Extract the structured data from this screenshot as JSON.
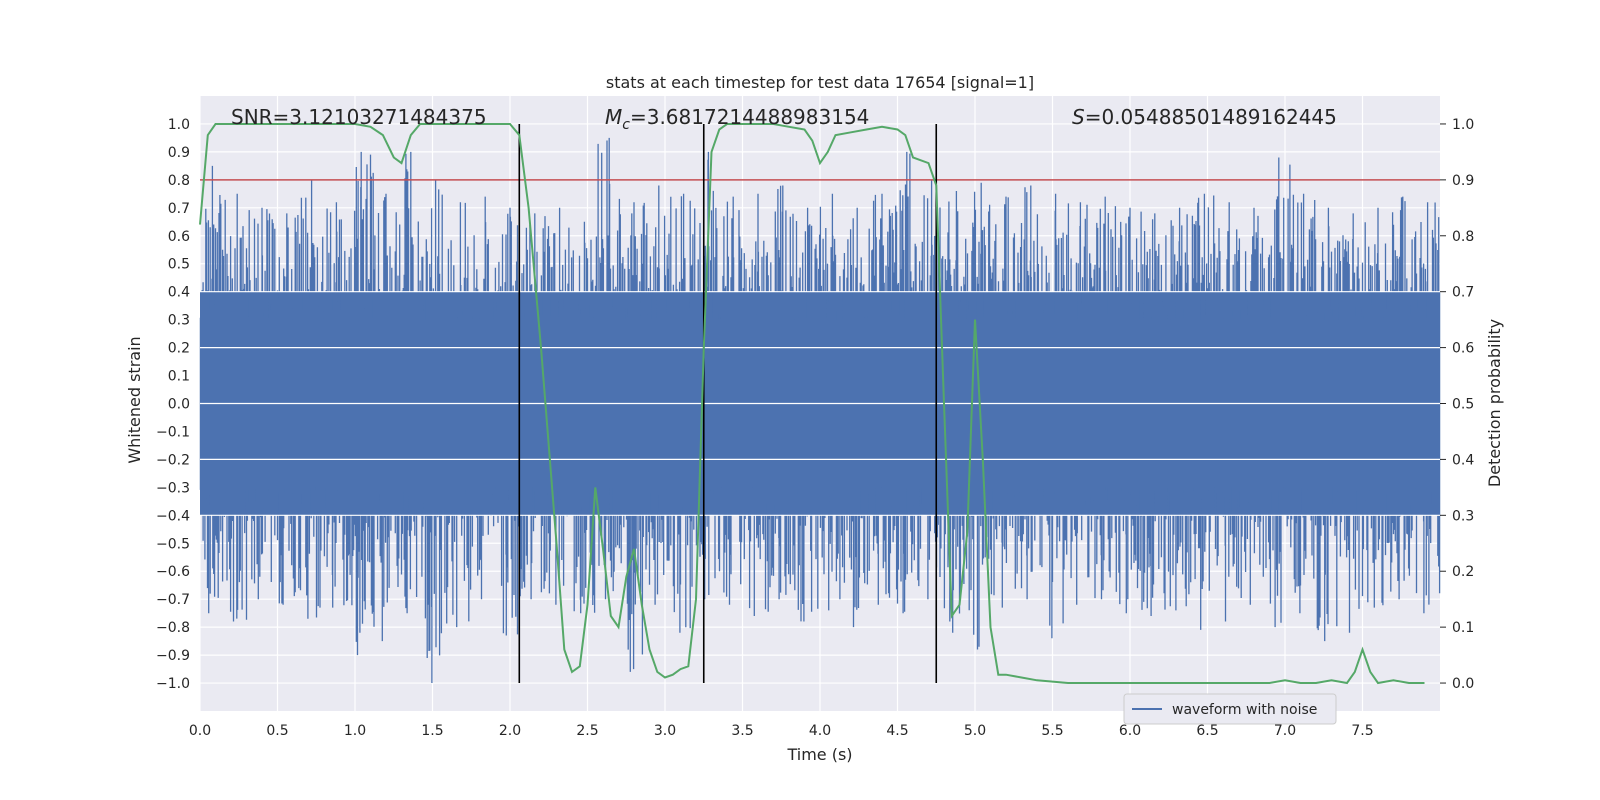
{
  "chart_data": {
    "type": "line",
    "title": "stats at each timestep for test data 17654 [signal=1]",
    "xlabel": "Time (s)",
    "ylabel": "Whitened strain",
    "y2label": "Detection probability",
    "xlim": [
      0,
      8
    ],
    "ylim": [
      -1.1,
      1.1
    ],
    "y2lim": [
      -0.05,
      1.05
    ],
    "grid": true,
    "legend_placement": "lower-right",
    "legend": [
      {
        "label": "waveform with noise",
        "color": "#4c72b0"
      }
    ],
    "x_ticks": [
      "0.0",
      "0.5",
      "1.0",
      "1.5",
      "2.0",
      "2.5",
      "3.0",
      "3.5",
      "4.0",
      "4.5",
      "5.0",
      "5.5",
      "6.0",
      "6.5",
      "7.0",
      "7.5"
    ],
    "y_ticks": [
      "1.0",
      "0.9",
      "0.8",
      "0.7",
      "0.6",
      "0.5",
      "0.4",
      "0.3",
      "0.2",
      "0.1",
      "0.0",
      "-0.1",
      "-0.2",
      "-0.3",
      "-0.4",
      "-0.5",
      "-0.6",
      "-0.7",
      "-0.8",
      "-0.9",
      "-1.0"
    ],
    "y2_ticks": [
      "1.0",
      "0.9",
      "0.8",
      "0.7",
      "0.6",
      "0.5",
      "0.4",
      "0.3",
      "0.2",
      "0.1",
      "0.0"
    ],
    "annotations": {
      "snr_label": "SNR=3.12103271484375",
      "mc_symbol": "M",
      "mc_subscript": "c",
      "mc_value": "=3.6817214488983154",
      "s_symbol": "S",
      "s_value": "=0.05488501489162445"
    },
    "vertical_lines_x": [
      2.06,
      3.25,
      4.75
    ],
    "threshold_line": {
      "y2": 0.9,
      "color": "#c44e52"
    },
    "waveform": {
      "name": "waveform with noise",
      "color": "#4c72b0",
      "core_band": [
        -0.4,
        0.4
      ],
      "spike_max": [
        0.85,
        0.75,
        0.7,
        0.68,
        0.8,
        0.72,
        0.9,
        0.75,
        0.9,
        0.8,
        0.72,
        0.74,
        0.7,
        0.68,
        0.7,
        0.65,
        0.95,
        0.72,
        0.78,
        0.75,
        0.9,
        0.74,
        0.75,
        0.78,
        0.7,
        0.75,
        0.7,
        0.75,
        0.9,
        0.8,
        0.76,
        0.79,
        0.74,
        0.78,
        0.75,
        0.72,
        0.74,
        0.7,
        0.68,
        0.7,
        0.75,
        0.72,
        0.7,
        0.88,
        0.75,
        0.7,
        0.68,
        0.7,
        0.74,
        0.72
      ],
      "spike_min": [
        -0.75,
        -0.78,
        -0.7,
        -0.72,
        -0.77,
        -0.73,
        -0.9,
        -0.85,
        -0.75,
        -1.0,
        -0.8,
        -0.7,
        -0.83,
        -0.7,
        -0.72,
        -0.75,
        -0.7,
        -0.96,
        -0.72,
        -0.82,
        -0.7,
        -0.72,
        -0.76,
        -0.7,
        -0.78,
        -0.74,
        -0.8,
        -0.72,
        -0.75,
        -0.7,
        -0.82,
        -0.88,
        -0.73,
        -0.7,
        -0.84,
        -0.72,
        -0.7,
        -0.75,
        -0.76,
        -0.74,
        -0.81,
        -0.78,
        -0.72,
        -0.8,
        -0.75,
        -0.85,
        -0.82,
        -0.73,
        -0.7,
        -0.75
      ]
    },
    "series": [
      {
        "name": "Detection probability",
        "color": "#55a868",
        "x": [
          0.0,
          0.05,
          0.1,
          0.2,
          0.4,
          0.6,
          0.8,
          1.0,
          1.1,
          1.18,
          1.25,
          1.3,
          1.36,
          1.42,
          1.5,
          1.6,
          1.8,
          2.0,
          2.06,
          2.12,
          2.2,
          2.3,
          2.35,
          2.4,
          2.45,
          2.5,
          2.55,
          2.6,
          2.65,
          2.7,
          2.75,
          2.8,
          2.85,
          2.9,
          2.95,
          3.0,
          3.05,
          3.1,
          3.15,
          3.2,
          3.25,
          3.3,
          3.35,
          3.4,
          3.5,
          3.6,
          3.7,
          3.8,
          3.9,
          3.95,
          4.0,
          4.05,
          4.1,
          4.2,
          4.3,
          4.4,
          4.5,
          4.55,
          4.6,
          4.7,
          4.75,
          4.8,
          4.85,
          4.9,
          4.95,
          5.0,
          5.05,
          5.1,
          5.15,
          5.2,
          5.3,
          5.4,
          5.6,
          5.8,
          6.0,
          6.2,
          6.4,
          6.6,
          6.8,
          6.9,
          7.0,
          7.1,
          7.2,
          7.3,
          7.4,
          7.45,
          7.5,
          7.55,
          7.6,
          7.7,
          7.8,
          7.9
        ],
        "y": [
          0.82,
          0.98,
          1.0,
          1.0,
          1.0,
          1.0,
          1.0,
          1.0,
          0.995,
          0.98,
          0.94,
          0.93,
          0.98,
          1.0,
          1.0,
          1.0,
          1.0,
          1.0,
          0.98,
          0.85,
          0.6,
          0.25,
          0.06,
          0.02,
          0.03,
          0.14,
          0.35,
          0.24,
          0.12,
          0.1,
          0.19,
          0.24,
          0.14,
          0.06,
          0.02,
          0.01,
          0.015,
          0.025,
          0.03,
          0.15,
          0.6,
          0.95,
          0.99,
          1.0,
          1.0,
          1.0,
          1.0,
          0.995,
          0.99,
          0.97,
          0.93,
          0.95,
          0.98,
          0.985,
          0.99,
          0.995,
          0.99,
          0.98,
          0.94,
          0.93,
          0.89,
          0.5,
          0.12,
          0.14,
          0.27,
          0.65,
          0.4,
          0.1,
          0.015,
          0.015,
          0.01,
          0.005,
          0.0,
          0.0,
          0.0,
          0.0,
          0.0,
          0.0,
          0.0,
          0.0,
          0.005,
          0.0,
          0.0,
          0.005,
          0.0,
          0.02,
          0.06,
          0.02,
          0.0,
          0.005,
          0.0,
          0.0
        ]
      }
    ]
  }
}
